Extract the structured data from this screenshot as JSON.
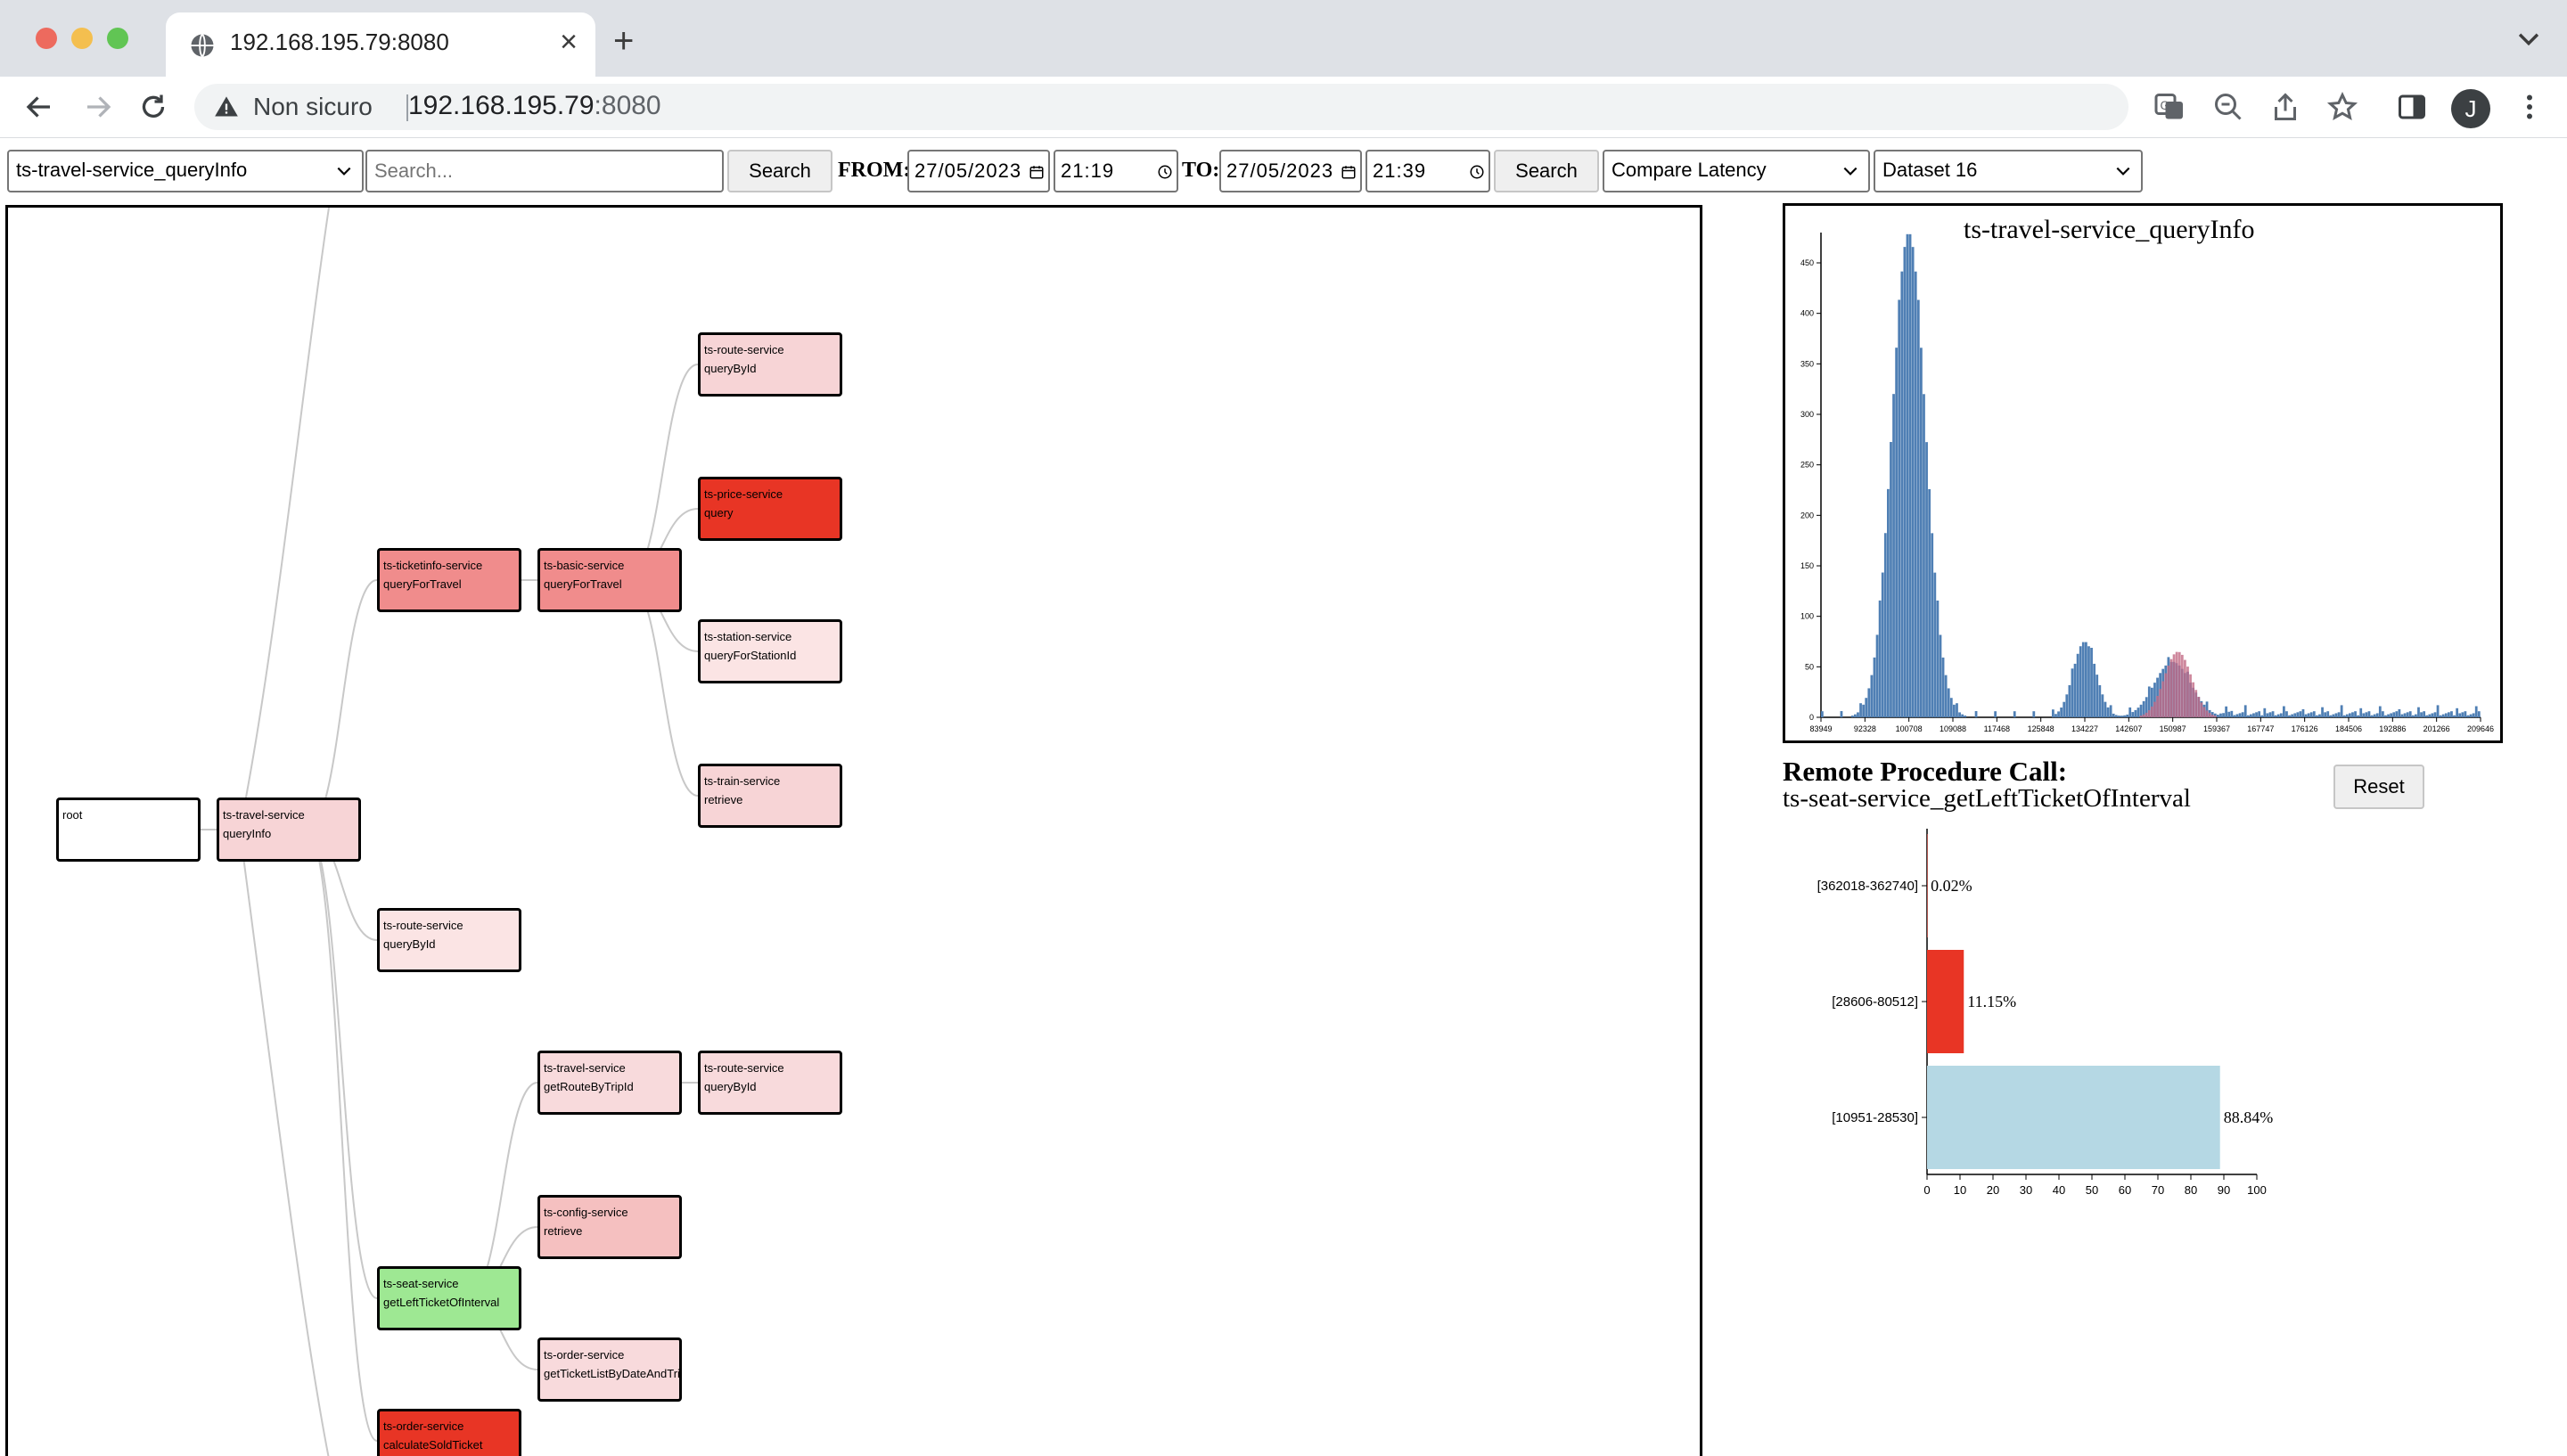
{
  "browser": {
    "tab_title": "192.168.195.79:8080",
    "security_label": "Non sicuro",
    "url_host": "192.168.195.79",
    "url_port": ":8080",
    "profile_initial": "J"
  },
  "controls": {
    "endpoint_select": "ts-travel-service_queryInfo",
    "search_placeholder": "Search...",
    "search_button": "Search",
    "from_label": "FROM:",
    "from_date": "27/05/2023",
    "from_time": "21:19",
    "to_label": "TO:",
    "to_date": "27/05/2023",
    "to_time": "21:39",
    "search_button_2": "Search",
    "mode_select": "Compare Latency",
    "dataset_select": "Dataset 16"
  },
  "tree": {
    "nodes": [
      {
        "service": "root",
        "op": "",
        "color": "#ffffff"
      },
      {
        "service": "ts-travel-service",
        "op": "queryInfo",
        "color": "#f7d4d6"
      },
      {
        "service": "ts-ticketinfo-service",
        "op": "queryForTravel",
        "color": "#f08c8c"
      },
      {
        "service": "ts-basic-service",
        "op": "queryForTravel",
        "color": "#f08c8c"
      },
      {
        "service": "ts-route-service",
        "op": "queryById",
        "color": "#f7d4d6"
      },
      {
        "service": "ts-price-service",
        "op": "query",
        "color": "#e83525"
      },
      {
        "service": "ts-station-service",
        "op": "queryForStationId",
        "color": "#fbe4e4"
      },
      {
        "service": "ts-train-service",
        "op": "retrieve",
        "color": "#f7d4d6"
      },
      {
        "service": "ts-route-service",
        "op": "queryById",
        "color": "#fbe4e4"
      },
      {
        "service": "ts-travel-service",
        "op": "getRouteByTripId",
        "color": "#f8dadc"
      },
      {
        "service": "ts-route-service",
        "op": "queryById",
        "color": "#f8dadc"
      },
      {
        "service": "ts-config-service",
        "op": "retrieve",
        "color": "#f5c0c0"
      },
      {
        "service": "ts-seat-service",
        "op": "getLeftTicketOfInterval",
        "color": "#9ee893"
      },
      {
        "service": "ts-order-service",
        "op": "getTicketListByDateAndTripId",
        "color": "#f8dadc"
      },
      {
        "service": "ts-order-service",
        "op": "calculateSoldTicket",
        "color": "#e83525"
      }
    ]
  },
  "histogram": {
    "title": "ts-travel-service_queryInfo",
    "chart_data": {
      "type": "bar",
      "x_ticks": [
        "83949",
        "92328",
        "100708",
        "109088",
        "117468",
        "125848",
        "134227",
        "142607",
        "150987",
        "159367",
        "167747",
        "176126",
        "184506",
        "192886",
        "201266",
        "209646"
      ],
      "y_ticks": [
        "0",
        "50",
        "100",
        "150",
        "200",
        "250",
        "300",
        "350",
        "400",
        "450"
      ],
      "ylim": [
        0,
        480
      ],
      "series": [
        {
          "color": "#4f7fb4",
          "peaks": [
            [
              100708,
              480,
              3200
            ],
            [
              134227,
              75,
              2200
            ],
            [
              150987,
              55,
              3500
            ]
          ]
        },
        {
          "color": "#c26a84",
          "peaks": [
            [
              152000,
              65,
              2600
            ]
          ]
        }
      ]
    }
  },
  "rpc": {
    "heading": "Remote Procedure Call:",
    "name": "ts-seat-service_getLeftTicketOfInterval",
    "reset_label": "Reset",
    "chart_data": {
      "type": "bar",
      "orientation": "horizontal",
      "categories": [
        "[362018-362740]",
        "[28606-80512]",
        "[10951-28530]"
      ],
      "values": [
        0.02,
        11.15,
        88.84
      ],
      "labels": [
        "0.02%",
        "11.15%",
        "88.84%"
      ],
      "colors": [
        "#e83525",
        "#e83525",
        "#b5d8e4"
      ],
      "x_ticks": [
        "0",
        "10",
        "20",
        "30",
        "40",
        "50",
        "60",
        "70",
        "80",
        "90",
        "100"
      ],
      "xlim": [
        0,
        100
      ]
    }
  }
}
